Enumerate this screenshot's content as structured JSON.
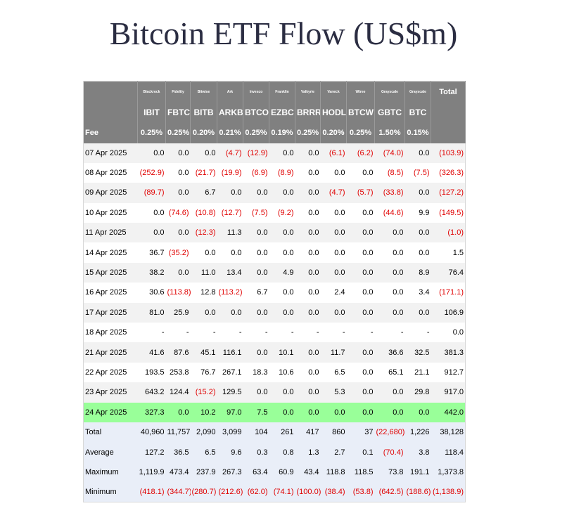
{
  "title": "Bitcoin ETF Flow (US$m)",
  "header": {
    "issuers": [
      "Blackrock",
      "Fidelity",
      "Bitwise",
      "Ark",
      "Invesco",
      "Franklin",
      "Valkyrie",
      "Vaneck",
      "Wtree",
      "Grayscale",
      "Grayscale"
    ],
    "total": "Total",
    "tickers": [
      "IBIT",
      "FBTC",
      "BITB",
      "ARKB",
      "BTCO",
      "EZBC",
      "BRRR",
      "HODL",
      "BTCW",
      "GBTC",
      "BTC"
    ],
    "fee_label": "Fee",
    "fees": [
      "0.25%",
      "0.25%",
      "0.20%",
      "0.21%",
      "0.25%",
      "0.19%",
      "0.25%",
      "0.20%",
      "0.25%",
      "1.50%",
      "0.15%"
    ]
  },
  "rows": [
    {
      "date": "07 Apr 2025",
      "values": [
        "0.0",
        "0.0",
        "0.0",
        "(4.7)",
        "(12.9)",
        "0.0",
        "0.0",
        "(6.1)",
        "(6.2)",
        "(74.0)",
        "0.0",
        "(103.9)"
      ]
    },
    {
      "date": "08 Apr 2025",
      "values": [
        "(252.9)",
        "0.0",
        "(21.7)",
        "(19.9)",
        "(6.9)",
        "(8.9)",
        "0.0",
        "0.0",
        "0.0",
        "(8.5)",
        "(7.5)",
        "(326.3)"
      ]
    },
    {
      "date": "09 Apr 2025",
      "values": [
        "(89.7)",
        "0.0",
        "6.7",
        "0.0",
        "0.0",
        "0.0",
        "0.0",
        "(4.7)",
        "(5.7)",
        "(33.8)",
        "0.0",
        "(127.2)"
      ]
    },
    {
      "date": "10 Apr 2025",
      "values": [
        "0.0",
        "(74.6)",
        "(10.8)",
        "(12.7)",
        "(7.5)",
        "(9.2)",
        "0.0",
        "0.0",
        "0.0",
        "(44.6)",
        "9.9",
        "(149.5)"
      ]
    },
    {
      "date": "11 Apr 2025",
      "values": [
        "0.0",
        "0.0",
        "(12.3)",
        "11.3",
        "0.0",
        "0.0",
        "0.0",
        "0.0",
        "0.0",
        "0.0",
        "0.0",
        "(1.0)"
      ]
    },
    {
      "date": "14 Apr 2025",
      "values": [
        "36.7",
        "(35.2)",
        "0.0",
        "0.0",
        "0.0",
        "0.0",
        "0.0",
        "0.0",
        "0.0",
        "0.0",
        "0.0",
        "1.5"
      ]
    },
    {
      "date": "15 Apr 2025",
      "values": [
        "38.2",
        "0.0",
        "11.0",
        "13.4",
        "0.0",
        "4.9",
        "0.0",
        "0.0",
        "0.0",
        "0.0",
        "8.9",
        "76.4"
      ]
    },
    {
      "date": "16 Apr 2025",
      "values": [
        "30.6",
        "(113.8)",
        "12.8",
        "(113.2)",
        "6.7",
        "0.0",
        "0.0",
        "2.4",
        "0.0",
        "0.0",
        "3.4",
        "(171.1)"
      ]
    },
    {
      "date": "17 Apr 2025",
      "values": [
        "81.0",
        "25.9",
        "0.0",
        "0.0",
        "0.0",
        "0.0",
        "0.0",
        "0.0",
        "0.0",
        "0.0",
        "0.0",
        "106.9"
      ]
    },
    {
      "date": "18 Apr 2025",
      "values": [
        "-",
        "-",
        "-",
        "-",
        "-",
        "-",
        "-",
        "-",
        "-",
        "-",
        "-",
        "0.0"
      ]
    },
    {
      "date": "21 Apr 2025",
      "values": [
        "41.6",
        "87.6",
        "45.1",
        "116.1",
        "0.0",
        "10.1",
        "0.0",
        "11.7",
        "0.0",
        "36.6",
        "32.5",
        "381.3"
      ]
    },
    {
      "date": "22 Apr 2025",
      "values": [
        "193.5",
        "253.8",
        "76.7",
        "267.1",
        "18.3",
        "10.6",
        "0.0",
        "6.5",
        "0.0",
        "65.1",
        "21.1",
        "912.7"
      ]
    },
    {
      "date": "23 Apr 2025",
      "values": [
        "643.2",
        "124.4",
        "(15.2)",
        "129.5",
        "0.0",
        "0.0",
        "0.0",
        "5.3",
        "0.0",
        "0.0",
        "29.8",
        "917.0"
      ]
    },
    {
      "date": "24 Apr 2025",
      "values": [
        "327.3",
        "0.0",
        "10.2",
        "97.0",
        "7.5",
        "0.0",
        "0.0",
        "0.0",
        "0.0",
        "0.0",
        "0.0",
        "442.0"
      ]
    }
  ],
  "summary": [
    {
      "label": "Total",
      "values": [
        "40,960",
        "11,757",
        "2,090",
        "3,099",
        "104",
        "261",
        "417",
        "860",
        "37",
        "(22,680)",
        "1,226",
        "38,128"
      ]
    },
    {
      "label": "Average",
      "values": [
        "127.2",
        "36.5",
        "6.5",
        "9.6",
        "0.3",
        "0.8",
        "1.3",
        "2.7",
        "0.1",
        "(70.4)",
        "3.8",
        "118.4"
      ]
    },
    {
      "label": "Maximum",
      "values": [
        "1,119.9",
        "473.4",
        "237.9",
        "267.3",
        "63.4",
        "60.9",
        "43.4",
        "118.8",
        "118.5",
        "73.8",
        "191.1",
        "1,373.8"
      ]
    },
    {
      "label": "Minimum",
      "values": [
        "(418.1)",
        "(344.7)",
        "(280.7)",
        "(212.6)",
        "(62.0)",
        "(74.1)",
        "(100.0)",
        "(38.4)",
        "(53.8)",
        "(642.5)",
        "(188.6)",
        "(1,138.9)"
      ]
    }
  ]
}
